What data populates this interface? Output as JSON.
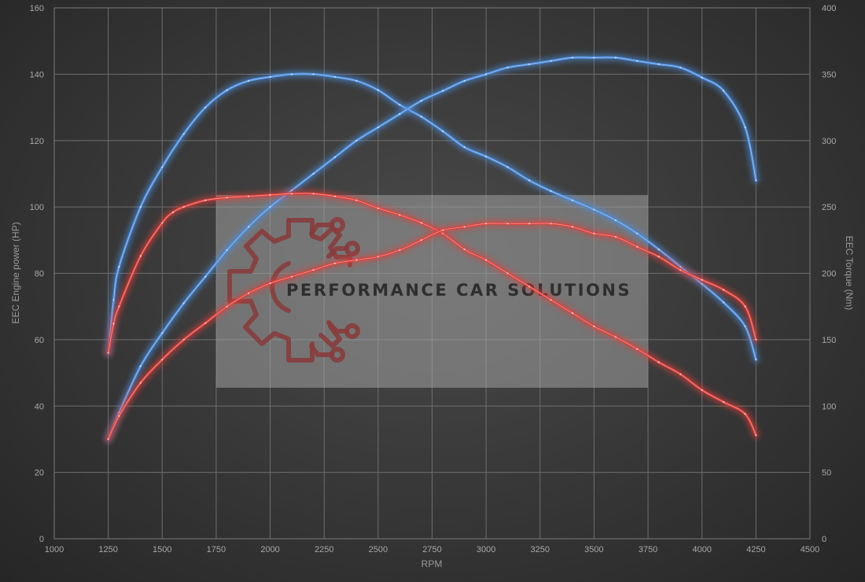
{
  "colors": {
    "stock": "#4d8fe0",
    "tuned": "#e0403a",
    "watermark_gear": "#8a3a3a"
  },
  "watermark": {
    "text": "PERFORMANCE CAR SOLUTIONS",
    "icon": "gear-circuit-icon"
  },
  "chart_data": {
    "type": "line",
    "title": "",
    "xlabel": "RPM",
    "ylabel": "EEC Engine power (HP)",
    "ylabel_right": "EEC Torque (Nm)",
    "xlim": [
      1000,
      4500
    ],
    "ylim": [
      0,
      160
    ],
    "ylim_right": [
      0,
      400
    ],
    "grid": true,
    "x_ticks": [
      1000,
      1250,
      1500,
      1750,
      2000,
      2250,
      2500,
      2750,
      3000,
      3250,
      3500,
      3750,
      4000,
      4250,
      4500
    ],
    "y_ticks": [
      0,
      20,
      40,
      60,
      80,
      100,
      120,
      140,
      160
    ],
    "y_ticks_right": [
      0,
      50,
      100,
      150,
      200,
      250,
      300,
      350,
      400
    ],
    "series": [
      {
        "axis": "right",
        "color_key": "stock",
        "points": [
          [
            1250,
            140
          ],
          [
            1275,
            180
          ],
          [
            1300,
            205
          ],
          [
            1400,
            250
          ],
          [
            1500,
            280
          ],
          [
            1600,
            305
          ],
          [
            1700,
            325
          ],
          [
            1800,
            338
          ],
          [
            1900,
            345
          ],
          [
            2000,
            348
          ],
          [
            2100,
            350
          ],
          [
            2200,
            350
          ],
          [
            2300,
            348
          ],
          [
            2400,
            345
          ],
          [
            2500,
            338
          ],
          [
            2600,
            327
          ],
          [
            2700,
            318
          ],
          [
            2800,
            307
          ],
          [
            2900,
            295
          ],
          [
            3000,
            288
          ],
          [
            3100,
            280
          ],
          [
            3200,
            270
          ],
          [
            3300,
            262
          ],
          [
            3400,
            255
          ],
          [
            3500,
            248
          ],
          [
            3600,
            240
          ],
          [
            3700,
            230
          ],
          [
            3800,
            218
          ],
          [
            3900,
            205
          ],
          [
            4000,
            192
          ],
          [
            4100,
            178
          ],
          [
            4200,
            160
          ],
          [
            4250,
            135
          ]
        ]
      },
      {
        "axis": "left",
        "color_key": "stock",
        "points": [
          [
            1250,
            30
          ],
          [
            1300,
            38
          ],
          [
            1400,
            52
          ],
          [
            1500,
            62
          ],
          [
            1600,
            71
          ],
          [
            1700,
            79
          ],
          [
            1800,
            87
          ],
          [
            1900,
            94
          ],
          [
            2000,
            100
          ],
          [
            2100,
            105
          ],
          [
            2200,
            110
          ],
          [
            2300,
            115
          ],
          [
            2400,
            120
          ],
          [
            2500,
            124
          ],
          [
            2600,
            128
          ],
          [
            2700,
            132
          ],
          [
            2800,
            135
          ],
          [
            2900,
            138
          ],
          [
            3000,
            140
          ],
          [
            3100,
            142
          ],
          [
            3200,
            143
          ],
          [
            3300,
            144
          ],
          [
            3400,
            145
          ],
          [
            3500,
            145
          ],
          [
            3600,
            145
          ],
          [
            3700,
            144
          ],
          [
            3800,
            143
          ],
          [
            3900,
            142
          ],
          [
            4000,
            139
          ],
          [
            4100,
            135
          ],
          [
            4200,
            124
          ],
          [
            4250,
            108
          ]
        ]
      },
      {
        "axis": "right",
        "color_key": "tuned",
        "points": [
          [
            1250,
            140
          ],
          [
            1275,
            162
          ],
          [
            1300,
            175
          ],
          [
            1400,
            213
          ],
          [
            1500,
            238
          ],
          [
            1550,
            246
          ],
          [
            1600,
            250
          ],
          [
            1700,
            255
          ],
          [
            1800,
            257
          ],
          [
            1900,
            258
          ],
          [
            2000,
            259
          ],
          [
            2100,
            260
          ],
          [
            2200,
            260
          ],
          [
            2300,
            258
          ],
          [
            2400,
            255
          ],
          [
            2500,
            249
          ],
          [
            2600,
            244
          ],
          [
            2700,
            238
          ],
          [
            2800,
            230
          ],
          [
            2900,
            218
          ],
          [
            3000,
            210
          ],
          [
            3100,
            200
          ],
          [
            3200,
            190
          ],
          [
            3300,
            180
          ],
          [
            3400,
            170
          ],
          [
            3500,
            160
          ],
          [
            3600,
            152
          ],
          [
            3700,
            143
          ],
          [
            3800,
            133
          ],
          [
            3900,
            124
          ],
          [
            4000,
            112
          ],
          [
            4100,
            103
          ],
          [
            4200,
            94
          ],
          [
            4250,
            78
          ]
        ]
      },
      {
        "axis": "left",
        "color_key": "tuned",
        "points": [
          [
            1250,
            30
          ],
          [
            1300,
            37
          ],
          [
            1400,
            47
          ],
          [
            1500,
            54
          ],
          [
            1600,
            60
          ],
          [
            1700,
            65
          ],
          [
            1800,
            70
          ],
          [
            1900,
            74
          ],
          [
            2000,
            77
          ],
          [
            2100,
            79
          ],
          [
            2200,
            81
          ],
          [
            2300,
            83
          ],
          [
            2400,
            84
          ],
          [
            2500,
            85
          ],
          [
            2600,
            87
          ],
          [
            2700,
            90
          ],
          [
            2800,
            93
          ],
          [
            2900,
            94
          ],
          [
            3000,
            95
          ],
          [
            3100,
            95
          ],
          [
            3200,
            95
          ],
          [
            3300,
            95
          ],
          [
            3400,
            94
          ],
          [
            3500,
            92
          ],
          [
            3600,
            91
          ],
          [
            3700,
            88
          ],
          [
            3800,
            85
          ],
          [
            3900,
            81
          ],
          [
            4000,
            78
          ],
          [
            4100,
            75
          ],
          [
            4200,
            70
          ],
          [
            4250,
            60
          ]
        ]
      }
    ]
  }
}
